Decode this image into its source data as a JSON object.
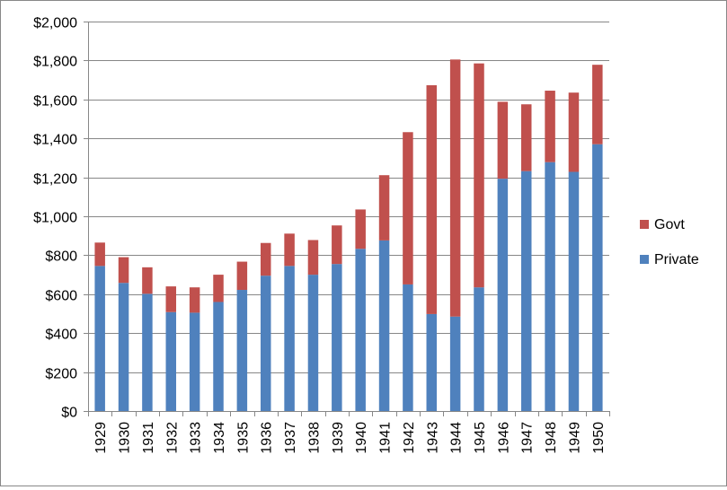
{
  "chart_data": {
    "type": "bar",
    "stacked": true,
    "title": "",
    "xlabel": "",
    "ylabel": "",
    "ylim": [
      0,
      2000
    ],
    "ytick_step": 200,
    "ytick_labels": [
      "$0",
      "$200",
      "$400",
      "$600",
      "$800",
      "$1,000",
      "$1,200",
      "$1,400",
      "$1,600",
      "$1,800",
      "$2,000"
    ],
    "grid": true,
    "legend_position": "right",
    "categories": [
      "1929",
      "1930",
      "1931",
      "1932",
      "1933",
      "1934",
      "1935",
      "1936",
      "1937",
      "1938",
      "1939",
      "1940",
      "1941",
      "1942",
      "1943",
      "1944",
      "1945",
      "1946",
      "1947",
      "1948",
      "1949",
      "1950"
    ],
    "series": [
      {
        "name": "Private",
        "color": "#4F81BD",
        "values": [
          745,
          658,
          602,
          508,
          505,
          560,
          622,
          695,
          745,
          700,
          755,
          833,
          876,
          650,
          498,
          485,
          635,
          1193,
          1232,
          1278,
          1228,
          1370
        ]
      },
      {
        "name": "Govt",
        "color": "#C0504D",
        "values": [
          120,
          132,
          136,
          132,
          130,
          140,
          145,
          168,
          166,
          178,
          198,
          202,
          335,
          782,
          1175,
          1320,
          1150,
          395,
          343,
          367,
          407,
          408
        ]
      }
    ],
    "legend": [
      {
        "name": "Govt",
        "color": "#C0504D"
      },
      {
        "name": "Private",
        "color": "#4F81BD"
      }
    ]
  }
}
